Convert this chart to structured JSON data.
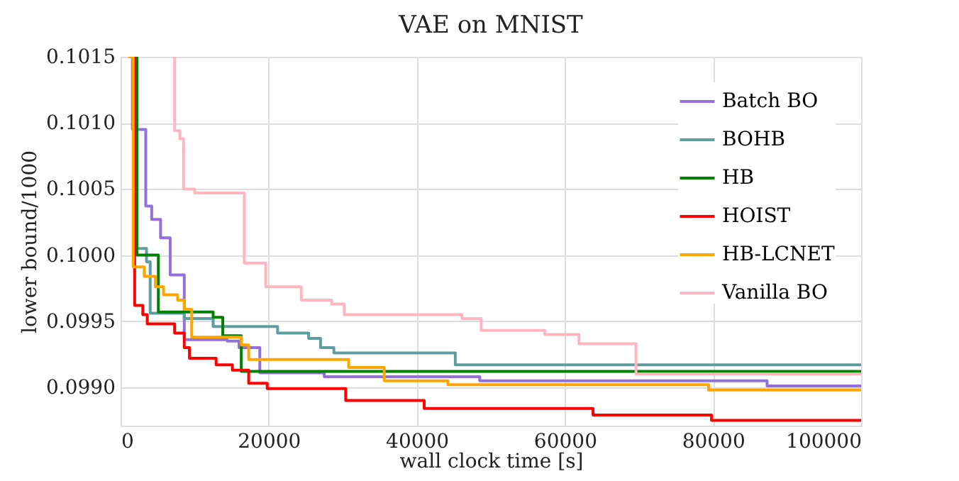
{
  "chart_data": {
    "type": "step",
    "title": "VAE on MNIST",
    "xlabel": "wall clock time [s]",
    "ylabel": "lower bound/1000",
    "xlim": [
      0,
      100000
    ],
    "xticks": [
      0,
      20000,
      40000,
      60000,
      80000,
      100000
    ],
    "ylim": [
      0.09871,
      0.1015
    ],
    "yticks": [
      {
        "value": 0.099,
        "label": "0.0990"
      },
      {
        "value": 0.0995,
        "label": "0.0995"
      },
      {
        "value": 0.1,
        "label": "0.1000"
      },
      {
        "value": 0.1005,
        "label": "0.1005"
      },
      {
        "value": 0.101,
        "label": "0.1010"
      },
      {
        "value": 0.1015,
        "label": "0.1015"
      }
    ],
    "grid": true,
    "legend": "top right",
    "marker": "none",
    "line_style": "solid",
    "series": [
      {
        "name": "Batch BO",
        "color": "#9370db",
        "x": [
          1500,
          1600,
          3400,
          4200,
          5400,
          6700,
          8600,
          14400,
          16000,
          18800,
          27500,
          48500,
          87300,
          100000
        ],
        "values": [
          0.1015,
          0.10095,
          0.10037,
          0.10027,
          0.10013,
          0.09985,
          0.09936,
          0.09935,
          0.0993,
          0.09911,
          0.09908,
          0.09905,
          0.09901,
          0.09901
        ]
      },
      {
        "name": "BOHB",
        "color": "#5f9ea0",
        "x": [
          1500,
          2200,
          3500,
          4000,
          8600,
          12500,
          21200,
          25400,
          27000,
          28800,
          45200,
          100000
        ],
        "values": [
          0.1015,
          0.10005,
          0.09995,
          0.09956,
          0.09952,
          0.09946,
          0.09941,
          0.09937,
          0.0993,
          0.09926,
          0.09917,
          0.09917
        ]
      },
      {
        "name": "HB",
        "color": "#008000",
        "x": [
          1300,
          2200,
          5100,
          12500,
          13800,
          16300,
          100000
        ],
        "values": [
          0.1015,
          0.1,
          0.09957,
          0.09953,
          0.09939,
          0.09912,
          0.09912
        ]
      },
      {
        "name": "HOIST",
        "color": "#ff0000",
        "x": [
          1200,
          1900,
          3000,
          3600,
          7300,
          8600,
          9300,
          12900,
          15100,
          17300,
          19800,
          30400,
          41000,
          63800,
          79800,
          100000
        ],
        "values": [
          0.1015,
          0.09962,
          0.09955,
          0.09948,
          0.09941,
          0.0993,
          0.09922,
          0.09917,
          0.09913,
          0.09903,
          0.09899,
          0.0989,
          0.09884,
          0.09879,
          0.09875,
          0.09875
        ]
      },
      {
        "name": "HB-LCNET",
        "color": "#ffa500",
        "x": [
          1000,
          1700,
          3200,
          4700,
          5800,
          7700,
          8600,
          9600,
          16300,
          17300,
          30800,
          35600,
          44200,
          79400,
          100000
        ],
        "values": [
          0.1015,
          0.09991,
          0.09984,
          0.09976,
          0.0997,
          0.09966,
          0.09959,
          0.09938,
          0.09932,
          0.09921,
          0.09915,
          0.09905,
          0.09902,
          0.09898,
          0.09898
        ]
      },
      {
        "name": "Vanilla BO",
        "color": "#ffb6c1",
        "x": [
          7000,
          7300,
          8000,
          8500,
          10000,
          16700,
          19600,
          24400,
          28500,
          30200,
          46100,
          48700,
          57300,
          61900,
          69600,
          100000
        ],
        "values": [
          0.1015,
          0.10094,
          0.10088,
          0.1005,
          0.10047,
          0.09994,
          0.09976,
          0.09966,
          0.09963,
          0.09955,
          0.09952,
          0.09943,
          0.0994,
          0.09933,
          0.0991,
          0.0991
        ]
      }
    ]
  }
}
